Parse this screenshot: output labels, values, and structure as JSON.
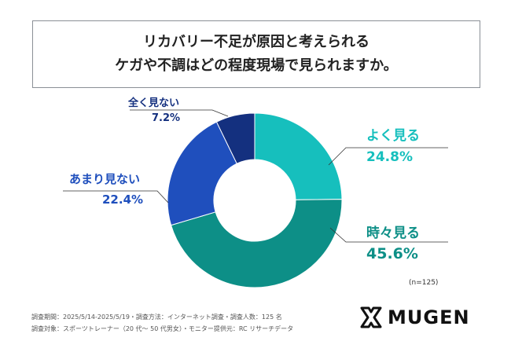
{
  "title": {
    "line1": "リカバリー不足が原因と考えられる",
    "line2": "ケガや不調はどの程度現場で見られますか。"
  },
  "chart_data": {
    "type": "pie",
    "donut": true,
    "categories": [
      "よく見る",
      "時々見る",
      "あまり見ない",
      "全く見ない"
    ],
    "values": [
      24.8,
      45.6,
      22.4,
      7.2
    ],
    "labels": [
      "24.8%",
      "45.6%",
      "22.4%",
      "7.2%"
    ],
    "colors": [
      "#16bfbd",
      "#0d8f87",
      "#1f4fbd",
      "#14307f"
    ]
  },
  "sample": "(n=125)",
  "footer": {
    "line1": "調査期間：2025/5/14-2025/5/19・調査方法：インターネット調査・調査人数：125 名",
    "line2": "調査対象：スポーツトレーナー（20 代〜 50 代男女）・モニター提供元：RC リサーチデータ"
  },
  "logo": {
    "text": "MUGEN"
  }
}
